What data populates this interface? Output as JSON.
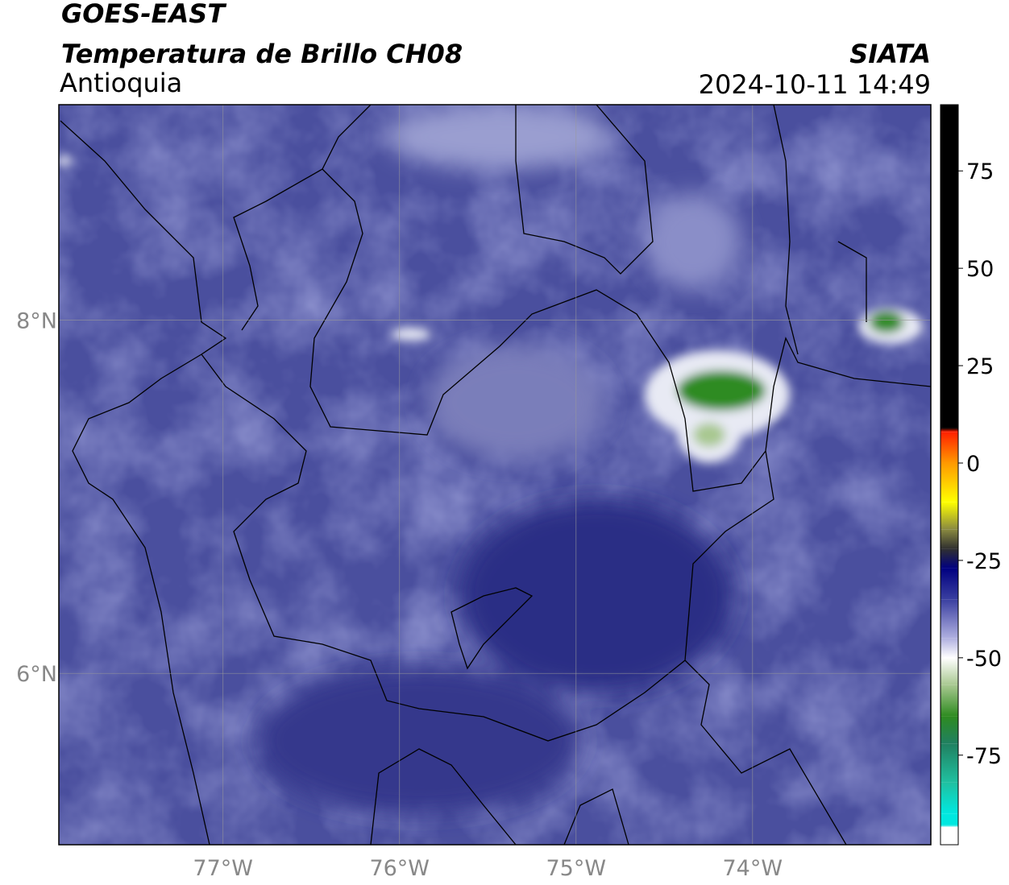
{
  "chart_data": {
    "type": "map",
    "title": "GOES-EAST",
    "subtitle": "Temperatura de Brillo CH08",
    "region": "Antioquia",
    "source": "SIATA",
    "timestamp": "2024-10-11 14:49",
    "xlim": [
      -77.93,
      -72.99
    ],
    "ylim": [
      5.03,
      9.22
    ],
    "xticks": [
      {
        "value": -77,
        "label": "77°W"
      },
      {
        "value": -76,
        "label": "76°W"
      },
      {
        "value": -75,
        "label": "75°W"
      },
      {
        "value": -74,
        "label": "74°W"
      }
    ],
    "yticks": [
      {
        "value": 8,
        "label": "8°N"
      },
      {
        "value": 6,
        "label": "6°N"
      }
    ],
    "grid": true,
    "clim": [
      -98,
      92
    ],
    "cticks": [
      75,
      50,
      25,
      0,
      -25,
      -50,
      -75
    ],
    "colormap": [
      {
        "value": 92,
        "color": "#000000"
      },
      {
        "value": 9,
        "color": "#000000"
      },
      {
        "value": 8,
        "color": "#ff2000"
      },
      {
        "value": 0,
        "color": "#ff9900"
      },
      {
        "value": -10,
        "color": "#ffff00"
      },
      {
        "value": -17,
        "color": "#8a8a40"
      },
      {
        "value": -22,
        "color": "#303030"
      },
      {
        "value": -27,
        "color": "#000080"
      },
      {
        "value": -35,
        "color": "#3a3fa0"
      },
      {
        "value": -45,
        "color": "#b0b0e0"
      },
      {
        "value": -50,
        "color": "#ffffff"
      },
      {
        "value": -57,
        "color": "#a8c890"
      },
      {
        "value": -65,
        "color": "#2e8b20"
      },
      {
        "value": -72,
        "color": "#208060"
      },
      {
        "value": -82,
        "color": "#20c0a0"
      },
      {
        "value": -90,
        "color": "#00e8e0"
      },
      {
        "value": -93,
        "color": "#00e8e0"
      },
      {
        "value": -93.5,
        "color": "#ffffff"
      },
      {
        "value": -98,
        "color": "#ffffff"
      }
    ]
  }
}
